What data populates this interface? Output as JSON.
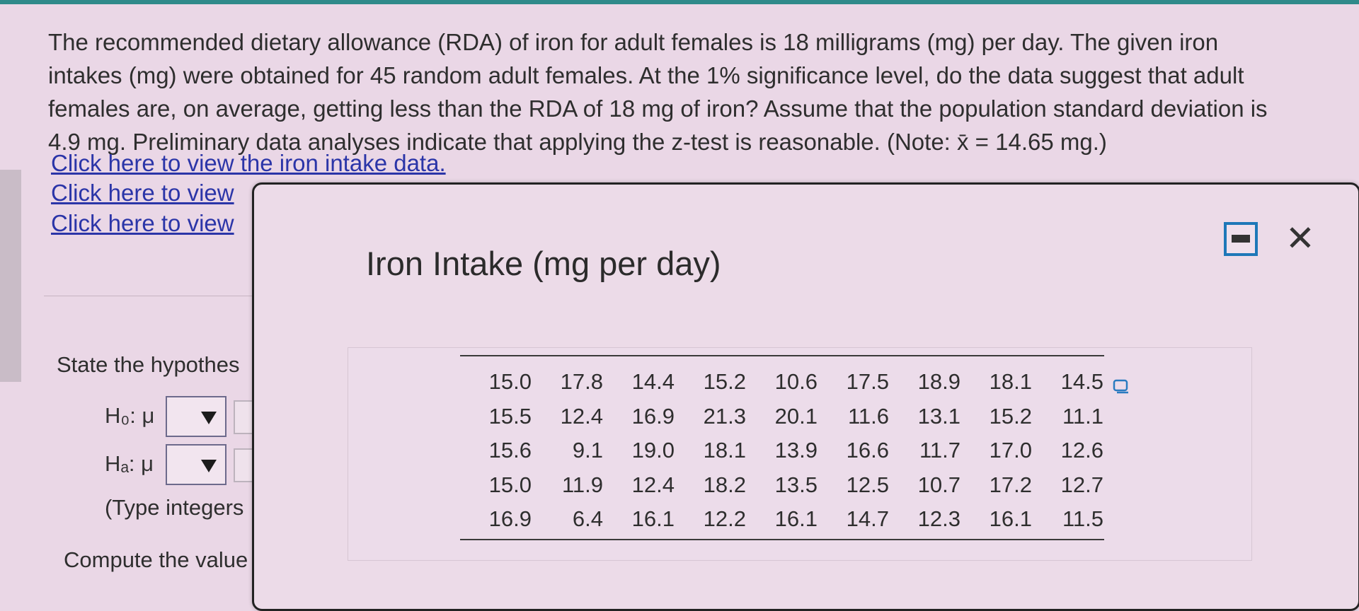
{
  "problem": {
    "lines": [
      "The recommended dietary allowance (RDA) of iron for adult females is 18 milligrams (mg) per day. The given iron",
      "intakes (mg) were obtained for 45 random adult females. At the 1% significance level, do the data suggest that adult",
      "females are, on average, getting less than the RDA of 18 mg of iron? Assume that the population standard deviation is",
      "4.9 mg. Preliminary data analyses indicate that applying the z-test is reasonable. (Note: x̄ = 14.65 mg.)"
    ],
    "links": [
      "Click here to view the iron intake data.",
      "Click here to view",
      "Click here to view"
    ]
  },
  "question": {
    "state_hypotheses": "State the hypothes",
    "h0_label": "H₀: μ",
    "ha_label": "Hₐ: μ",
    "type_hint": "(Type integers",
    "compute": "Compute the value"
  },
  "modal": {
    "title": "Iron Intake (mg per day)",
    "minimize_icon": "minimize-icon",
    "close_icon": "close-icon",
    "close_glyph": "✕",
    "table": [
      [
        "15.0",
        "17.8",
        "14.4",
        "15.2",
        "10.6",
        "17.5",
        "18.9",
        "18.1",
        "14.5"
      ],
      [
        "15.5",
        "12.4",
        "16.9",
        "21.3",
        "20.1",
        "11.6",
        "13.1",
        "15.2",
        "11.1"
      ],
      [
        "15.6",
        "9.1",
        "19.0",
        "18.1",
        "13.9",
        "16.6",
        "11.7",
        "17.0",
        "12.6"
      ],
      [
        "15.0",
        "11.9",
        "12.4",
        "18.2",
        "13.5",
        "12.5",
        "10.7",
        "17.2",
        "12.7"
      ],
      [
        "16.9",
        "6.4",
        "16.1",
        "12.2",
        "16.1",
        "14.7",
        "12.3",
        "16.1",
        "11.5"
      ]
    ]
  },
  "colors": {
    "background": "#ead7e6",
    "link": "#2b35a8",
    "accent": "#1e78b8"
  }
}
